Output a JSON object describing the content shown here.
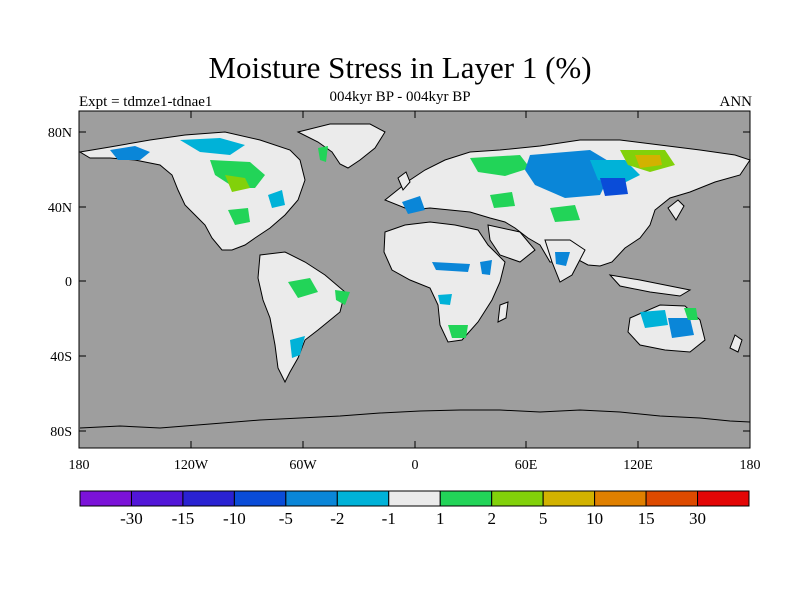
{
  "header": {
    "title": "Moisture Stress in Layer 1 (%)",
    "subtitle": "004kyr BP - 004kyr BP",
    "experiment": "Expt = tdmze1-tdnae1",
    "period": "ANN"
  },
  "map": {
    "lat_labels": [
      "80N",
      "40N",
      "0",
      "40S",
      "80S"
    ],
    "lon_labels": [
      "180",
      "120W",
      "60W",
      "0",
      "60E",
      "120E",
      "180"
    ],
    "ocean_color": "#9e9e9e",
    "land_color": "#ebebeb"
  },
  "colorbar": {
    "colors": [
      "#7b12d8",
      "#5216d8",
      "#2a22d2",
      "#0a4cd8",
      "#0a86d8",
      "#00b2d8",
      "#ebebeb",
      "#22d458",
      "#82d10a",
      "#d2b200",
      "#e08000",
      "#dd4a00",
      "#e30606"
    ],
    "labels": [
      "-30",
      "-15",
      "-10",
      "-5",
      "-2",
      "-1",
      "1",
      "2",
      "5",
      "10",
      "15",
      "30"
    ]
  }
}
